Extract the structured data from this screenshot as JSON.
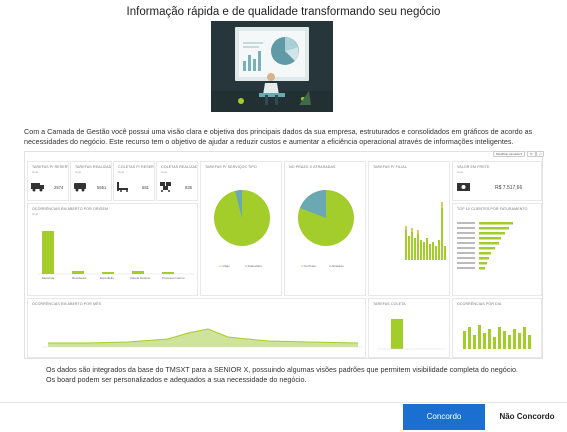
{
  "page": {
    "title": "Informação rápida e de qualidade transformando seu negócio",
    "intro": "Com a Camada de Gestão você possui uma visão clara e objetiva dos principais dados da sua empresa, estruturados e consolidados em gráficos de acordo as necessidades do negócio. Este recurso tem o objetivo de ajudar a reduzir custos e aumentar a eficiência operacional através de informações inteligentes.",
    "footer_line1": "Os dados são integrados da base do TMSXT para a SENIOR X, possuindo algumas visões padrões que permitem visibilidade completa do negócio.",
    "footer_line2": "Os board podem ser personalizados e adequados a sua necessidade do negócio."
  },
  "buttons": {
    "agree": "Concordo",
    "disagree": "Não Concordo"
  },
  "colors": {
    "accent": "#1b6fd0",
    "chart_green": "#a3cd2b",
    "chart_teal": "#6aa8b4",
    "hero_bg": "#27363a"
  },
  "dashboard": {
    "kpis": [
      {
        "icon": "truck-icon",
        "value": "2574"
      },
      {
        "icon": "van-icon",
        "value": "5551"
      },
      {
        "icon": "forklift-icon",
        "value": "581"
      },
      {
        "icon": "pallet-icon",
        "value": "835"
      }
    ],
    "money_value": "R$ 7.517,66",
    "pie_left": {
      "legend": [
        "Urbgo",
        "Rodoviário"
      ],
      "values": [
        96,
        4
      ]
    },
    "pie_right": {
      "legend": [
        "No Prazo",
        "Atrasado"
      ],
      "values": [
        85,
        15
      ]
    }
  }
}
